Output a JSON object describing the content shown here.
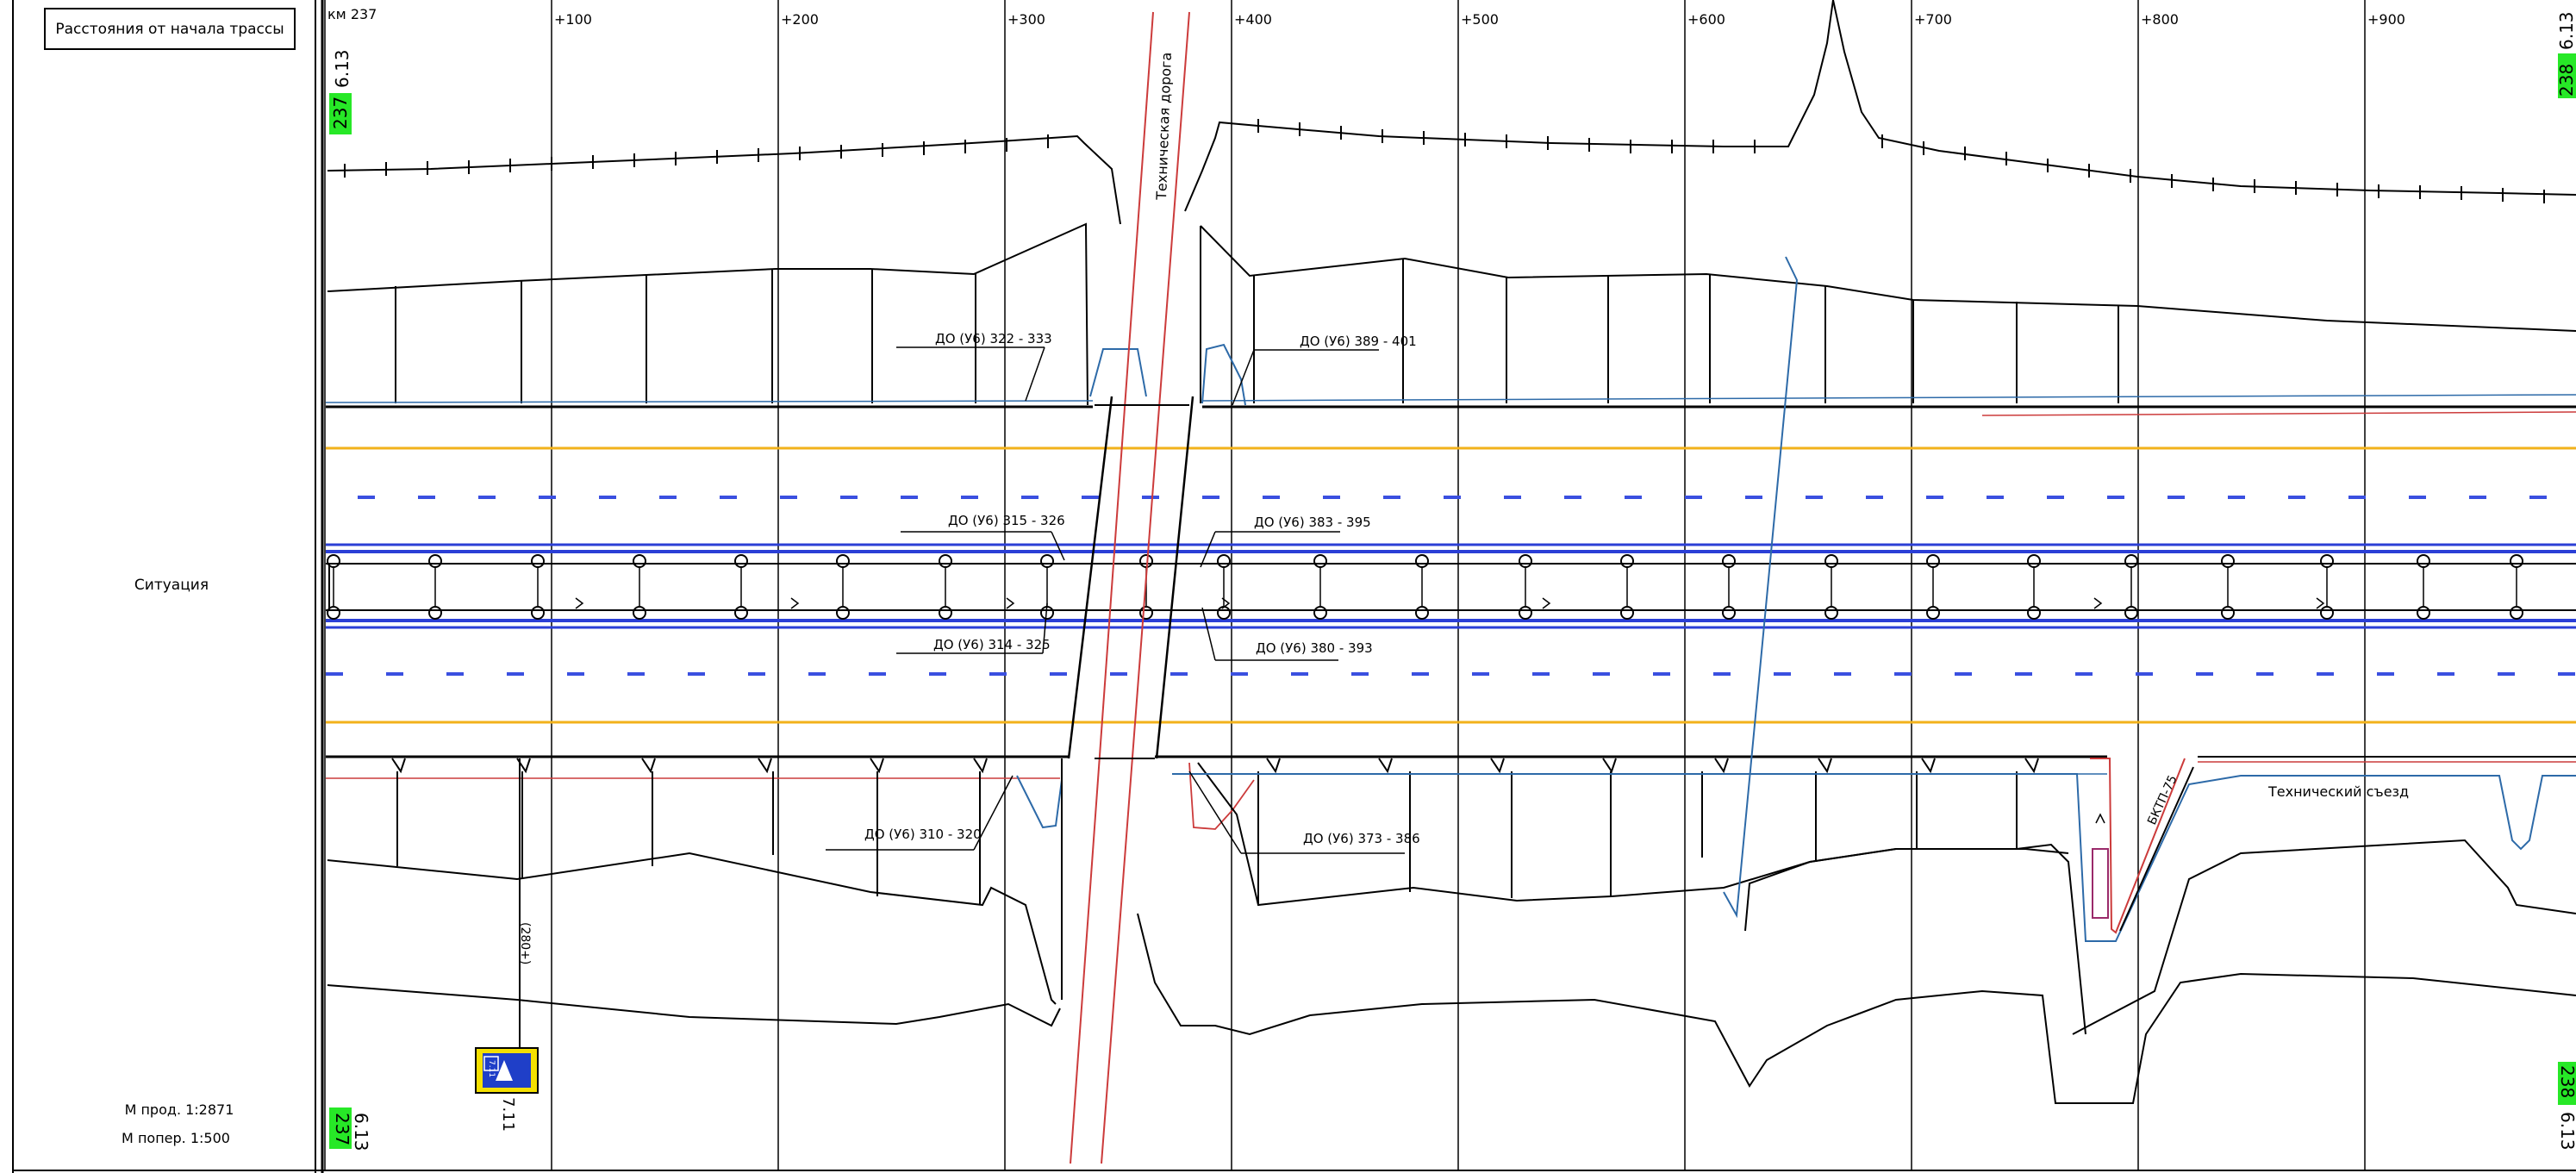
{
  "sidebar": {
    "header": "Расстояния от начала трассы",
    "section_label": "Ситуация",
    "scale_long": "М прод. 1:2871",
    "scale_cross": "М попер. 1:500"
  },
  "chainage": {
    "km_label": "км 237",
    "ticks": [
      "+100",
      "+200",
      "+300",
      "+400",
      "+500",
      "+600",
      "+700",
      "+800",
      "+900"
    ]
  },
  "markers": {
    "km_left_top": "237",
    "km_left_top_code": "6.13",
    "km_left_bottom": "237",
    "km_left_bottom_code": "6.13",
    "km_right_top": "238",
    "km_right_top_code": "6.13",
    "km_right_bottom": "238",
    "km_right_bottom_code": "6.13"
  },
  "labels": {
    "tech_road": "Техническая дорога",
    "tech_exit": "Технический съезд",
    "do_322_333": "ДО (У6) 322 - 333",
    "do_389_401": "ДО (У6) 389 - 401",
    "do_315_326": "ДО (У6) 315 - 326",
    "do_383_395": "ДО (У6) 383 - 395",
    "do_314_325": "ДО (У6) 314 - 325",
    "do_380_393": "ДО (У6) 380 - 393",
    "do_310_320": "ДО (У6) 310 - 320",
    "do_373_386": "ДО (У6) 373 - 386",
    "bktp": "БКТП-75",
    "sign_ref": "(280+)",
    "sign_code": "7.11",
    "sign_code_small": "7.11"
  },
  "colors": {
    "yellow_line": "#f2b21b",
    "blue_marking": "#2b3fd6",
    "dashed_marking": "#3a4fe0",
    "pipe_blue": "#2d6aa8",
    "red_line": "#cc3b3b",
    "km_green": "#27e827",
    "sign_yellow": "#f5e000",
    "sign_blue": "#1f3fc8",
    "magenta": "#9a2a6a"
  }
}
